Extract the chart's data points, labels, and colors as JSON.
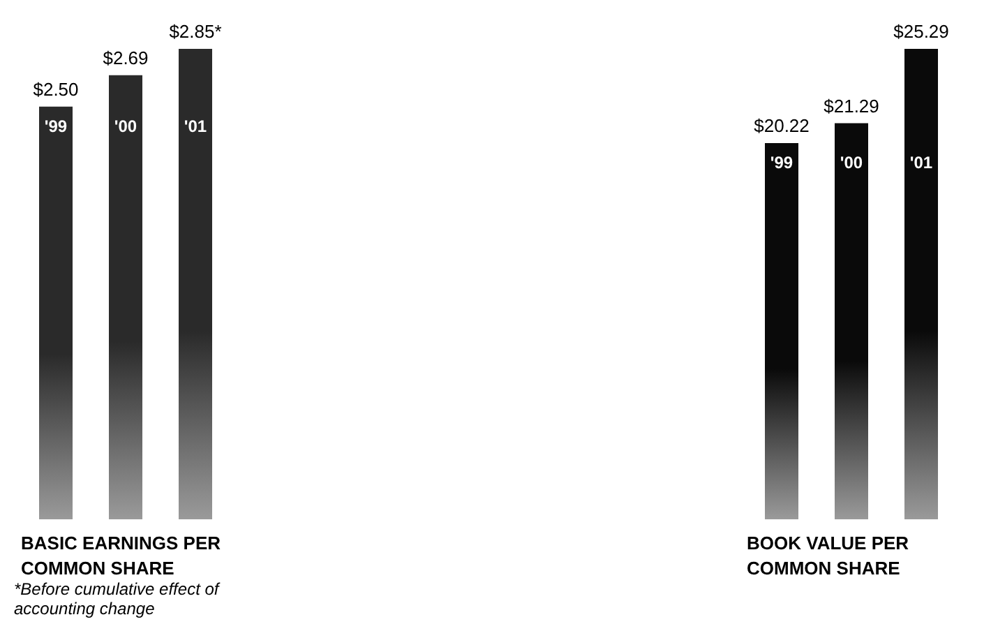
{
  "chart_data": [
    {
      "type": "bar",
      "xlabel": "BASIC EARNINGS PER COMMON SHARE",
      "categories": [
        "'99",
        "'00",
        "'01"
      ],
      "values": [
        2.5,
        2.69,
        2.85
      ],
      "value_labels": [
        "$2.50",
        "$2.69",
        "$2.85*"
      ],
      "color": "#2a2a2a",
      "ylim": [
        0,
        2.85
      ],
      "tick_labels": "x",
      "annotations": [
        "*Before cumulative effect of accounting change"
      ]
    },
    {
      "type": "bar",
      "xlabel": "BOOK VALUE PER COMMON SHARE",
      "categories": [
        "'99",
        "'00",
        "'01"
      ],
      "values": [
        20.22,
        21.29,
        25.29
      ],
      "value_labels": [
        "$20.22",
        "$21.29",
        "$25.29"
      ],
      "color": "#0a0a0a",
      "ylim": [
        0,
        25.29
      ],
      "tick_labels": "x"
    }
  ]
}
